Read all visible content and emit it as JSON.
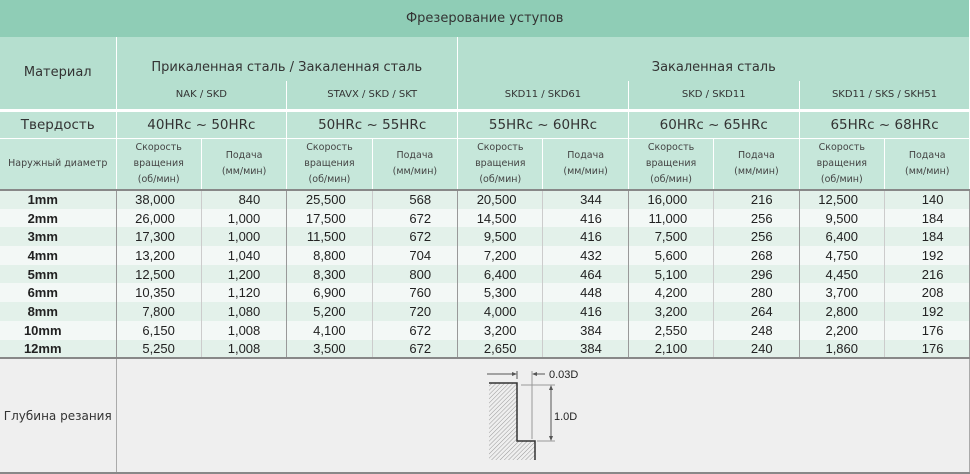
{
  "title": "Фрезерование уступов",
  "material_label": "Материал",
  "hardness_label": "Твердость",
  "diameter_label": "Наружный диаметр",
  "depth_label": "Глубина резания",
  "groups": [
    {
      "name": "Прикаленная сталь / Закаленная сталь",
      "materials": [
        "NAK / SKD",
        "STAVX / SKD / SKT"
      ]
    },
    {
      "name": "Закаленная сталь",
      "materials": [
        "SKD11 / SKD61",
        "SKD / SKD11",
        "SKD11 / SKS / SKH51"
      ]
    }
  ],
  "hardness": [
    "40HRc ~ 50HRc",
    "50HRc ~ 55HRc",
    "55HRc ~ 60HRc",
    "60HRc ~ 65HRc",
    "65HRc ~ 68HRc"
  ],
  "speed_header": [
    "Скорость",
    "вращения",
    "(об/мин)"
  ],
  "feed_header": [
    "Подача",
    "(мм/мин)"
  ],
  "rows": [
    {
      "d": "1mm",
      "v": [
        "38,000",
        "840",
        "25,500",
        "568",
        "20,500",
        "344",
        "16,000",
        "216",
        "12,500",
        "140"
      ]
    },
    {
      "d": "2mm",
      "v": [
        "26,000",
        "1,000",
        "17,500",
        "672",
        "14,500",
        "416",
        "11,000",
        "256",
        "9,500",
        "184"
      ]
    },
    {
      "d": "3mm",
      "v": [
        "17,300",
        "1,000",
        "11,500",
        "672",
        "9,500",
        "416",
        "7,500",
        "256",
        "6,400",
        "184"
      ]
    },
    {
      "d": "4mm",
      "v": [
        "13,200",
        "1,040",
        "8,800",
        "704",
        "7,200",
        "432",
        "5,600",
        "268",
        "4,750",
        "192"
      ]
    },
    {
      "d": "5mm",
      "v": [
        "12,500",
        "1,200",
        "8,300",
        "800",
        "6,400",
        "464",
        "5,100",
        "296",
        "4,450",
        "216"
      ]
    },
    {
      "d": "6mm",
      "v": [
        "10,350",
        "1,120",
        "6,900",
        "760",
        "5,300",
        "448",
        "4,200",
        "280",
        "3,700",
        "208"
      ]
    },
    {
      "d": "8mm",
      "v": [
        "7,800",
        "1,080",
        "5,200",
        "720",
        "4,000",
        "416",
        "3,200",
        "264",
        "2,800",
        "192"
      ]
    },
    {
      "d": "10mm",
      "v": [
        "6,150",
        "1,008",
        "4,100",
        "672",
        "3,200",
        "384",
        "2,550",
        "248",
        "2,200",
        "176"
      ]
    },
    {
      "d": "12mm",
      "v": [
        "5,250",
        "1,008",
        "3,500",
        "672",
        "2,650",
        "384",
        "2,100",
        "240",
        "1,860",
        "176"
      ]
    }
  ],
  "diagram": {
    "radial": "0.03D",
    "axial": "1.0D"
  },
  "colors": {
    "title_bg": "#8fcdb6",
    "header_bg": "#b5dfcf"
  }
}
